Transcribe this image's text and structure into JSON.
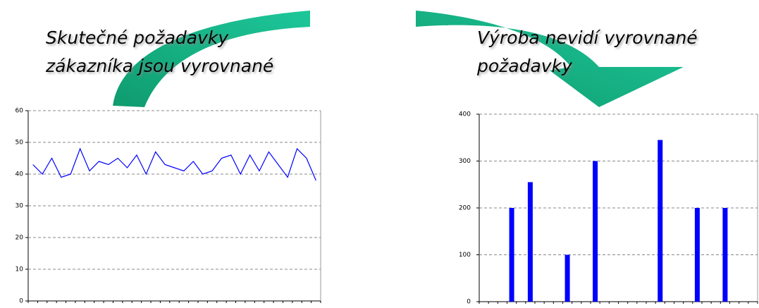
{
  "chart_data": [
    {
      "type": "line",
      "title": [
        "Skutečné požadavky",
        "zákazníka jsou vyrovnané"
      ],
      "values": [
        43,
        40,
        45,
        39,
        40,
        48,
        41,
        44,
        43,
        45,
        42,
        46,
        40,
        47,
        43,
        42,
        41,
        44,
        40,
        41,
        45,
        46,
        40,
        46,
        41,
        47,
        43,
        39,
        48,
        45,
        38
      ],
      "color": "#0000ff",
      "ylim": [
        0,
        60
      ],
      "yticks": [
        0,
        10,
        20,
        30,
        40,
        50,
        60
      ],
      "grid": true
    },
    {
      "type": "bar",
      "title": [
        "Výroba nevidí vyrovnané",
        "požadavky"
      ],
      "values": [
        0,
        0,
        0,
        200,
        0,
        255,
        0,
        0,
        0,
        100,
        0,
        0,
        300,
        0,
        0,
        0,
        0,
        0,
        0,
        345,
        0,
        0,
        0,
        200,
        0,
        0,
        200,
        0,
        0,
        0
      ],
      "color": "#0000ff",
      "ylim": [
        0,
        400
      ],
      "yticks": [
        0,
        100,
        200,
        300,
        400
      ],
      "grid": true
    }
  ]
}
